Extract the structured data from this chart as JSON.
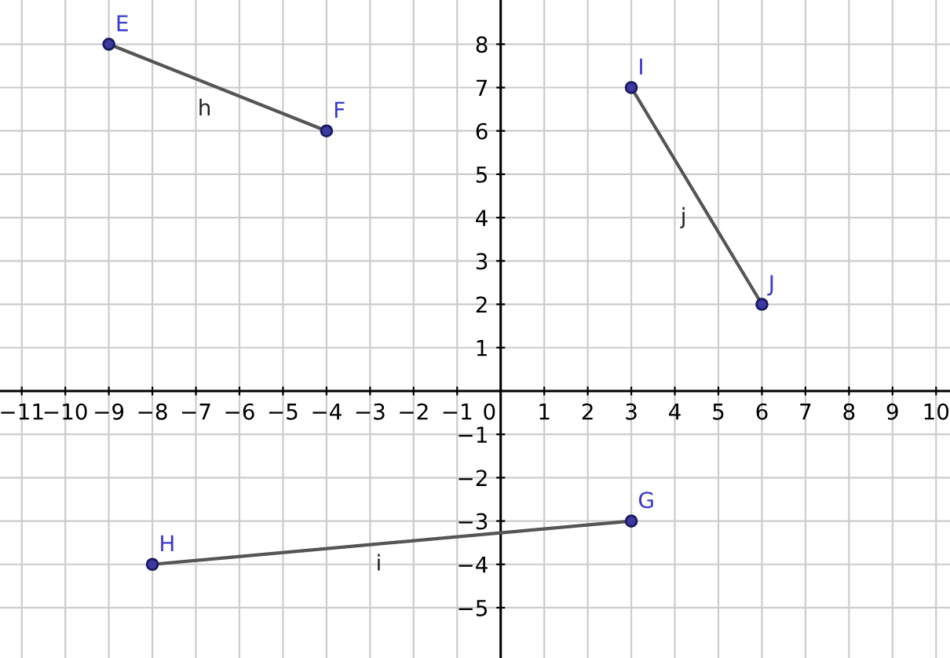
{
  "chart_data": {
    "type": "line",
    "series": [
      {
        "name": "h",
        "color": "#555555",
        "x": [
          -9,
          -4
        ],
        "values": [
          8,
          6
        ]
      },
      {
        "name": "i",
        "color": "#555555",
        "x": [
          -8,
          3
        ],
        "values": [
          -4,
          -3
        ]
      },
      {
        "name": "j",
        "color": "#555555",
        "x": [
          3,
          6
        ],
        "values": [
          7,
          2
        ]
      }
    ],
    "marker": "circle",
    "annotations": [
      {
        "text": "E",
        "x": -9,
        "y": 8
      },
      {
        "text": "F",
        "x": -4,
        "y": 6
      },
      {
        "text": "G",
        "x": 3,
        "y": -3
      },
      {
        "text": "H",
        "x": -8,
        "y": -4
      },
      {
        "text": "I",
        "x": 3,
        "y": 7
      },
      {
        "text": "J",
        "x": 6,
        "y": 2
      }
    ],
    "xlim": [
      -11.5,
      10.32
    ],
    "ylim": [
      -6.16,
      9.02
    ],
    "xticks": [
      {
        "value": -11,
        "label": "−11"
      },
      {
        "value": -10,
        "label": "−10"
      },
      {
        "value": -9,
        "label": "−9"
      },
      {
        "value": -8,
        "label": "−8"
      },
      {
        "value": -7,
        "label": "−7"
      },
      {
        "value": -6,
        "label": "−6"
      },
      {
        "value": -5,
        "label": "−5"
      },
      {
        "value": -4,
        "label": "−4"
      },
      {
        "value": -3,
        "label": "−3"
      },
      {
        "value": -2,
        "label": "−2"
      },
      {
        "value": -1,
        "label": "−1"
      },
      0,
      1,
      2,
      3,
      4,
      5,
      6,
      7,
      8,
      9,
      10
    ],
    "yticks": [
      {
        "value": -5,
        "label": "−5"
      },
      {
        "value": -4,
        "label": "−4"
      },
      {
        "value": -3,
        "label": "−3"
      },
      {
        "value": -2,
        "label": "−2"
      },
      {
        "value": -1,
        "label": "−1"
      },
      {
        "value": 0,
        "label": null
      },
      1,
      2,
      3,
      4,
      5,
      6,
      7,
      8
    ],
    "grid": true,
    "legend": false
  }
}
